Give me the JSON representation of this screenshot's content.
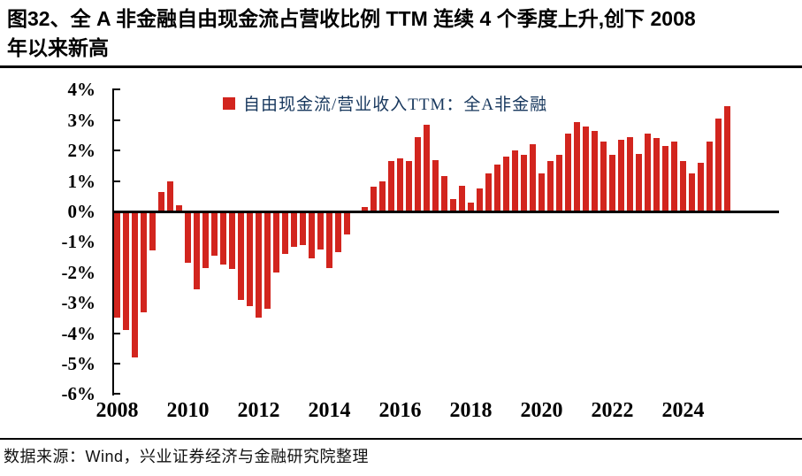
{
  "title": {
    "line1": "图32、全 A 非金融自由现金流占营收比例 TTM 连续 4 个季度上升,创下 2008",
    "line2": "年以来新高"
  },
  "legend": {
    "label": "自由现金流/营业收入TTM：全A非金融"
  },
  "footer": {
    "text": "数据来源：Wind，兴业证券经济与金融研究院整理"
  },
  "colors": {
    "bar": "#D2251E",
    "legend_text": "#17375D",
    "axis": "#000000"
  },
  "chart_data": {
    "type": "bar",
    "title": "图32、全A非金融自由现金流占营收比例TTM连续4个季度上升,创下2008年以来新高",
    "legend_entries": [
      "自由现金流/营业收入TTM：全A非金融"
    ],
    "legend_position": "top-center",
    "unit": "percent of revenue, TTM",
    "ylim": [
      -6,
      4
    ],
    "grid": false,
    "bar_color": "#D2251E",
    "y_tick_labels": [
      "4%",
      "3%",
      "2%",
      "1%",
      "0%",
      "-1%",
      "-2%",
      "-3%",
      "-4%",
      "-5%",
      "-6%"
    ],
    "x_tick_labels": [
      "2008",
      "2010",
      "2012",
      "2014",
      "2016",
      "2018",
      "2020",
      "2022",
      "2024"
    ],
    "categories": [
      "2008Q1",
      "2008Q2",
      "2008Q3",
      "2008Q4",
      "2009Q1",
      "2009Q2",
      "2009Q3",
      "2009Q4",
      "2010Q1",
      "2010Q2",
      "2010Q3",
      "2010Q4",
      "2011Q1",
      "2011Q2",
      "2011Q3",
      "2011Q4",
      "2012Q1",
      "2012Q2",
      "2012Q3",
      "2012Q4",
      "2013Q1",
      "2013Q2",
      "2013Q3",
      "2013Q4",
      "2014Q1",
      "2014Q2",
      "2014Q3",
      "2014Q4",
      "2015Q1",
      "2015Q2",
      "2015Q3",
      "2015Q4",
      "2016Q1",
      "2016Q2",
      "2016Q3",
      "2016Q4",
      "2017Q1",
      "2017Q2",
      "2017Q3",
      "2017Q4",
      "2018Q1",
      "2018Q2",
      "2018Q3",
      "2018Q4",
      "2019Q1",
      "2019Q2",
      "2019Q3",
      "2019Q4",
      "2020Q1",
      "2020Q2",
      "2020Q3",
      "2020Q4",
      "2021Q1",
      "2021Q2",
      "2021Q3",
      "2021Q4",
      "2022Q1",
      "2022Q2",
      "2022Q3",
      "2022Q4",
      "2023Q1",
      "2023Q2",
      "2023Q3",
      "2023Q4",
      "2024Q1",
      "2024Q2",
      "2024Q3",
      "2024Q4",
      "2025Q1",
      "2025Q2"
    ],
    "values": [
      -3.5,
      -3.9,
      -4.8,
      -3.3,
      -1.27,
      0.65,
      1.0,
      0.2,
      -1.7,
      -2.55,
      -1.85,
      -1.45,
      -1.75,
      -1.9,
      -2.9,
      -3.1,
      -3.5,
      -3.2,
      -2.0,
      -1.4,
      -1.15,
      -1.1,
      -1.55,
      -1.25,
      -1.85,
      -1.35,
      -0.75,
      0.0,
      0.15,
      0.8,
      1.0,
      1.65,
      1.75,
      1.65,
      2.45,
      2.85,
      1.7,
      1.15,
      0.4,
      0.85,
      0.3,
      0.75,
      1.25,
      1.55,
      1.8,
      2.0,
      1.85,
      2.2,
      1.25,
      1.65,
      1.85,
      2.55,
      2.95,
      2.8,
      2.65,
      2.3,
      1.85,
      2.35,
      2.45,
      1.9,
      2.55,
      2.4,
      2.15,
      2.3,
      1.65,
      1.25,
      1.6,
      2.3,
      3.05,
      3.45
    ]
  }
}
